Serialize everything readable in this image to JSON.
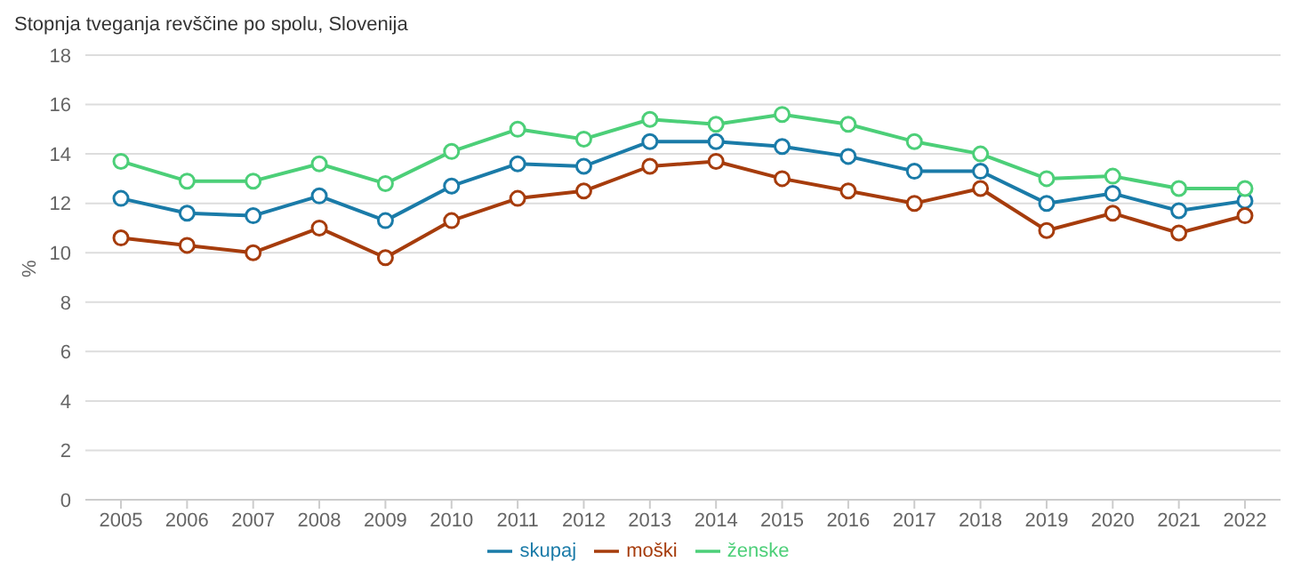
{
  "chart_data": {
    "type": "line",
    "title": "Stopnja tveganja revščine po spolu, Slovenija",
    "ylabel": "%",
    "categories": [
      "2005",
      "2006",
      "2007",
      "2008",
      "2009",
      "2010",
      "2011",
      "2012",
      "2013",
      "2014",
      "2015",
      "2016",
      "2017",
      "2018",
      "2019",
      "2020",
      "2021",
      "2022"
    ],
    "series": [
      {
        "name": "skupaj",
        "color": "#1a7ba8",
        "values": [
          12.2,
          11.6,
          11.5,
          12.3,
          11.3,
          12.7,
          13.6,
          13.5,
          14.5,
          14.5,
          14.3,
          13.9,
          13.3,
          13.3,
          12.0,
          12.4,
          11.7,
          12.1
        ]
      },
      {
        "name": "moški",
        "color": "#a63c0c",
        "values": [
          10.6,
          10.3,
          10.0,
          11.0,
          9.8,
          11.3,
          12.2,
          12.5,
          13.5,
          13.7,
          13.0,
          12.5,
          12.0,
          12.6,
          10.9,
          11.6,
          10.8,
          11.5
        ]
      },
      {
        "name": "ženske",
        "color": "#4ccf78",
        "values": [
          13.7,
          12.9,
          12.9,
          13.6,
          12.8,
          14.1,
          15.0,
          14.6,
          15.4,
          15.2,
          15.6,
          15.2,
          14.5,
          14.0,
          13.0,
          13.1,
          12.6,
          12.6
        ]
      }
    ],
    "ylim": [
      0,
      18
    ],
    "yticks": [
      0,
      2,
      4,
      6,
      8,
      10,
      12,
      14,
      16,
      18
    ],
    "grid": "y",
    "legend": "bottom",
    "marker": "circle",
    "line_style": "solid"
  }
}
